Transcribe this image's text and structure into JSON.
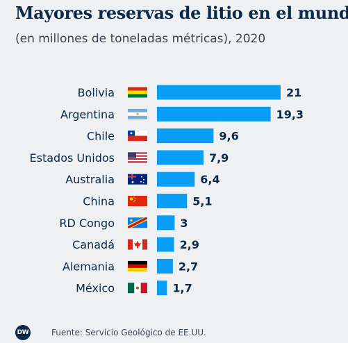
{
  "header": {
    "title": "Mayores reservas de litio en el mundo",
    "subtitle": "(en millones de toneladas métricas), 2020"
  },
  "footer": {
    "logo": "DW",
    "source": "Fuente: Servicio Geológico de EE.UU."
  },
  "colors": {
    "bar": "#0a9df5",
    "text": "#0b2a4a",
    "background": "#eef0f2"
  },
  "chart_data": {
    "type": "bar",
    "orientation": "horizontal",
    "categories": [
      "Bolivia",
      "Argentina",
      "Chile",
      "Estados Unidos",
      "Australia",
      "China",
      "RD Congo",
      "Canadá",
      "Alemania",
      "México"
    ],
    "values": [
      21,
      19.3,
      9.6,
      7.9,
      6.4,
      5.1,
      3,
      2.9,
      2.7,
      1.7
    ],
    "value_labels": [
      "21",
      "19,3",
      "9,6",
      "7,9",
      "6,4",
      "5,1",
      "3",
      "2,9",
      "2,7",
      "1,7"
    ],
    "flags": [
      "bolivia-flag",
      "argentina-flag",
      "chile-flag",
      "usa-flag",
      "australia-flag",
      "china-flag",
      "drcongo-flag",
      "canada-flag",
      "germany-flag",
      "mexico-flag"
    ],
    "title": "Mayores reservas de litio en el mundo",
    "xlim": [
      0,
      21
    ],
    "grid": false,
    "legend": false
  }
}
